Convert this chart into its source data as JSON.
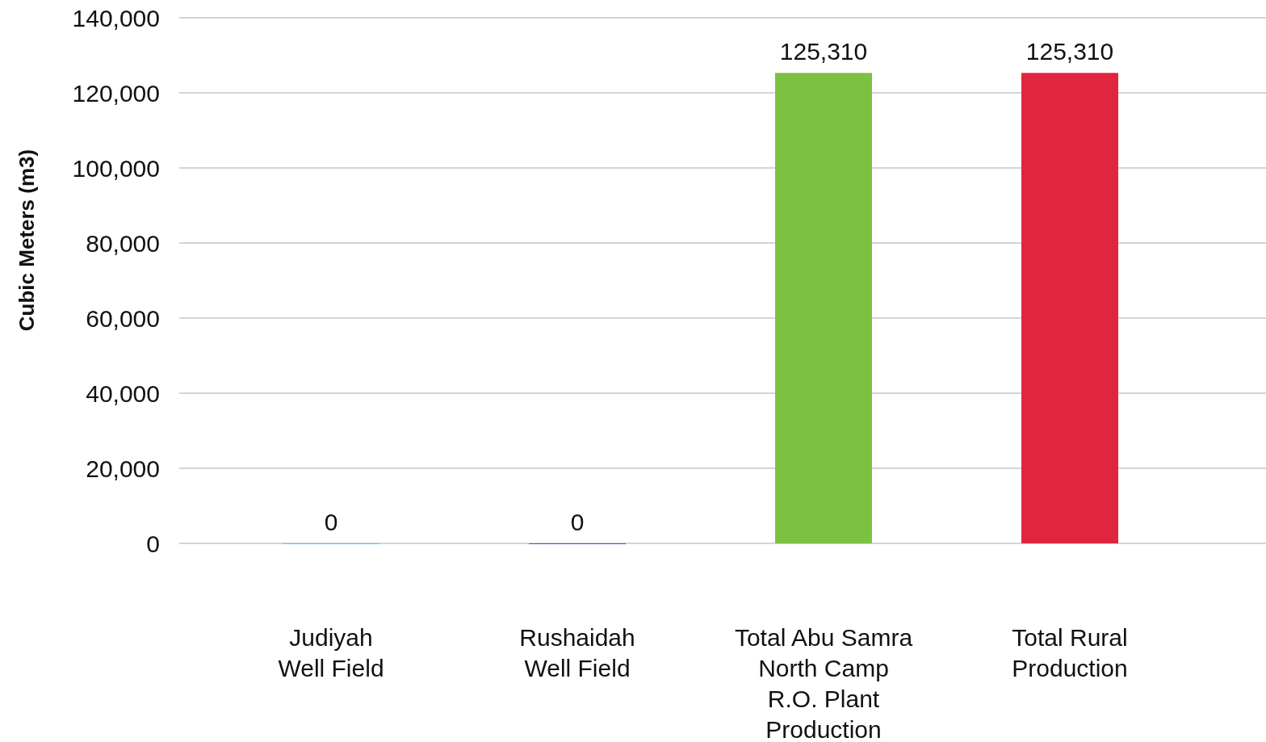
{
  "chart_data": {
    "type": "bar",
    "ylabel": "Cubic Meters (m3)",
    "categories": [
      "Judiyah\nWell Field",
      "Rushaidah\nWell Field",
      "Total Abu Samra\nNorth Camp\nR.O. Plant\nProduction",
      "Total Rural\nProduction"
    ],
    "values": [
      0,
      0,
      125310,
      125310
    ],
    "colors": [
      "#5bc8ef",
      "#6a4fa8",
      "#7dc142",
      "#e0263f"
    ],
    "ylim": [
      0,
      140000
    ],
    "yticks": [
      {
        "value": 0,
        "label": "0"
      },
      {
        "value": 20000,
        "label": "20,000"
      },
      {
        "value": 40000,
        "label": "40,000"
      },
      {
        "value": 60000,
        "label": "60,000"
      },
      {
        "value": 80000,
        "label": "80,000"
      },
      {
        "value": 100000,
        "label": "100,000"
      },
      {
        "value": 120000,
        "label": "120,000"
      },
      {
        "value": 140000,
        "label": "140,000"
      }
    ],
    "value_labels": [
      "0",
      "0",
      "125,310",
      "125,310"
    ],
    "grid": "y"
  }
}
